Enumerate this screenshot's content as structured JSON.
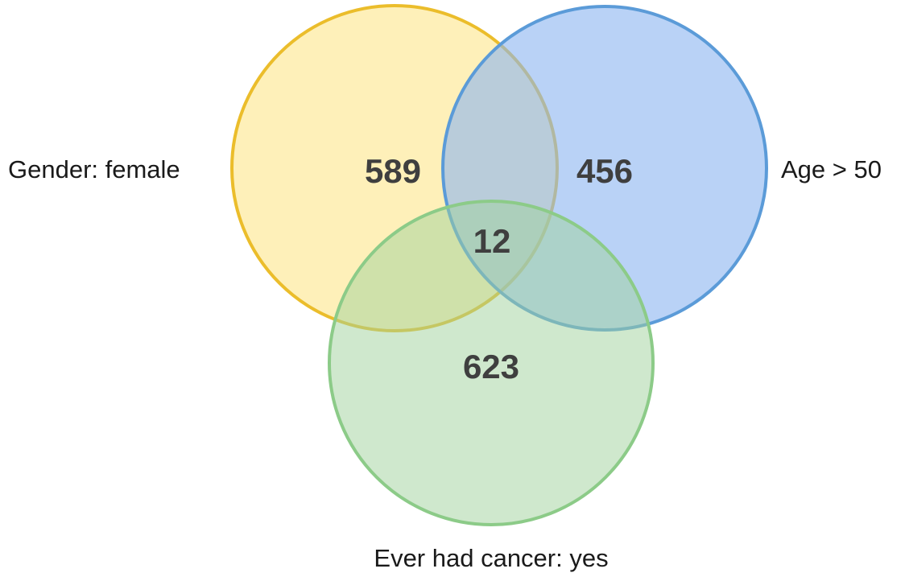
{
  "venn": {
    "sets": [
      {
        "key": "female",
        "label": "Gender: female",
        "fill": "#fde68a",
        "fill_opacity": 0.6,
        "stroke": "#ebbd2b"
      },
      {
        "key": "age",
        "label": "Age > 50",
        "fill": "#8ab4f0",
        "fill_opacity": 0.6,
        "stroke": "#5b9bd8"
      },
      {
        "key": "cancer",
        "label": "Ever had cancer: yes",
        "fill": "#9fd19b",
        "fill_opacity": 0.5,
        "stroke": "#8ccb88"
      }
    ],
    "regions": [
      {
        "sets": [
          "female"
        ],
        "value": "589"
      },
      {
        "sets": [
          "age"
        ],
        "value": "456"
      },
      {
        "sets": [
          "female",
          "age",
          "cancer"
        ],
        "value": "12"
      },
      {
        "sets": [
          "cancer"
        ],
        "value": "623"
      }
    ]
  }
}
